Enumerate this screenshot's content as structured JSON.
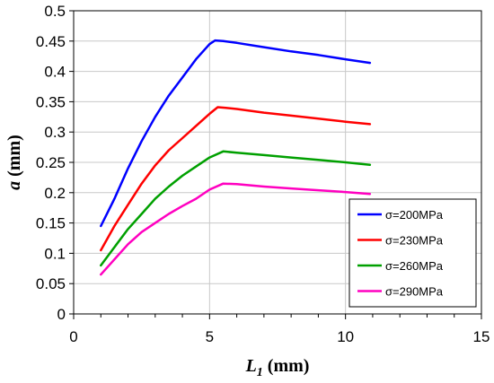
{
  "chart_data": {
    "type": "line",
    "xlabel_main": "L",
    "xlabel_sub": "1",
    "xlabel_unit": " (mm)",
    "ylabel_main": "a",
    "ylabel_unit": " (mm)",
    "xlim": [
      0,
      15
    ],
    "ylim": [
      0,
      0.5
    ],
    "xticks": [
      "0",
      "5",
      "10",
      "15"
    ],
    "yticks": [
      "0",
      "0.05",
      "0.1",
      "0.15",
      "0.2",
      "0.25",
      "0.3",
      "0.35",
      "0.4",
      "0.45",
      "0.5"
    ],
    "grid": true,
    "legend_position": "bottom-right",
    "series": [
      {
        "name": "σ=200MPa",
        "color": "#0000ff",
        "points": [
          [
            1.0,
            0.145
          ],
          [
            1.5,
            0.19
          ],
          [
            2.0,
            0.24
          ],
          [
            2.5,
            0.285
          ],
          [
            3.0,
            0.325
          ],
          [
            3.5,
            0.36
          ],
          [
            4.0,
            0.39
          ],
          [
            4.5,
            0.42
          ],
          [
            5.0,
            0.445
          ],
          [
            5.2,
            0.451
          ],
          [
            5.5,
            0.45
          ],
          [
            6.0,
            0.447
          ],
          [
            7.0,
            0.44
          ],
          [
            8.0,
            0.433
          ],
          [
            9.0,
            0.427
          ],
          [
            10.0,
            0.42
          ],
          [
            10.9,
            0.414
          ]
        ]
      },
      {
        "name": "σ=230MPa",
        "color": "#ff0000",
        "points": [
          [
            1.0,
            0.105
          ],
          [
            1.5,
            0.145
          ],
          [
            2.0,
            0.18
          ],
          [
            2.5,
            0.215
          ],
          [
            3.0,
            0.245
          ],
          [
            3.5,
            0.27
          ],
          [
            4.0,
            0.29
          ],
          [
            4.5,
            0.31
          ],
          [
            5.0,
            0.33
          ],
          [
            5.3,
            0.341
          ],
          [
            5.6,
            0.34
          ],
          [
            6.0,
            0.338
          ],
          [
            7.0,
            0.332
          ],
          [
            8.0,
            0.327
          ],
          [
            9.0,
            0.322
          ],
          [
            10.0,
            0.317
          ],
          [
            10.9,
            0.313
          ]
        ]
      },
      {
        "name": "σ=260MPa",
        "color": "#00a000",
        "points": [
          [
            1.0,
            0.08
          ],
          [
            1.5,
            0.11
          ],
          [
            2.0,
            0.14
          ],
          [
            2.5,
            0.165
          ],
          [
            3.0,
            0.19
          ],
          [
            3.5,
            0.21
          ],
          [
            4.0,
            0.228
          ],
          [
            4.5,
            0.243
          ],
          [
            5.0,
            0.258
          ],
          [
            5.5,
            0.268
          ],
          [
            6.0,
            0.266
          ],
          [
            7.0,
            0.262
          ],
          [
            8.0,
            0.258
          ],
          [
            9.0,
            0.254
          ],
          [
            10.0,
            0.25
          ],
          [
            10.9,
            0.246
          ]
        ]
      },
      {
        "name": "σ=290MPa",
        "color": "#ff00c0",
        "points": [
          [
            1.0,
            0.065
          ],
          [
            1.5,
            0.09
          ],
          [
            2.0,
            0.115
          ],
          [
            2.5,
            0.135
          ],
          [
            3.0,
            0.15
          ],
          [
            3.5,
            0.165
          ],
          [
            4.0,
            0.178
          ],
          [
            4.5,
            0.19
          ],
          [
            5.0,
            0.205
          ],
          [
            5.5,
            0.215
          ],
          [
            6.0,
            0.214
          ],
          [
            7.0,
            0.21
          ],
          [
            8.0,
            0.207
          ],
          [
            9.0,
            0.204
          ],
          [
            10.0,
            0.201
          ],
          [
            10.9,
            0.198
          ]
        ]
      }
    ]
  }
}
